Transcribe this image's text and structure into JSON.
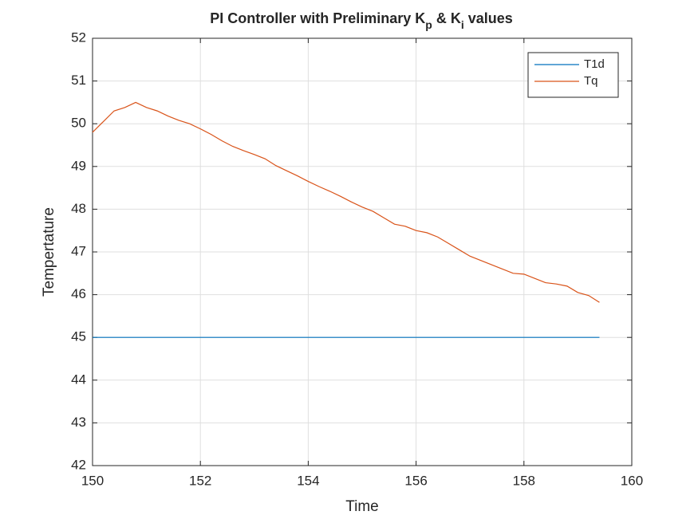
{
  "chart_data": {
    "type": "line",
    "title": [
      {
        "text": "PI Controller with Preliminary K"
      },
      {
        "text": "p",
        "subscript": true
      },
      {
        "text": " & K"
      },
      {
        "text": "i",
        "subscript": true
      },
      {
        "text": " values"
      }
    ],
    "xlabel": "Time",
    "ylabel": "Tempertature",
    "xlim": [
      150,
      160
    ],
    "xticks": [
      150,
      152,
      154,
      156,
      158,
      160
    ],
    "ylim": [
      42,
      52
    ],
    "yticks": [
      42,
      43,
      44,
      45,
      46,
      47,
      48,
      49,
      50,
      51,
      52
    ],
    "grid": true,
    "legend": "northeast",
    "x": [
      150,
      150.2,
      150.4,
      150.6,
      150.8,
      151,
      151.2,
      151.4,
      151.6,
      151.8,
      152,
      152.2,
      152.4,
      152.6,
      152.8,
      153,
      153.2,
      153.4,
      153.6,
      153.8,
      154,
      154.2,
      154.4,
      154.6,
      154.8,
      155,
      155.2,
      155.4,
      155.6,
      155.8,
      156,
      156.2,
      156.4,
      156.6,
      156.8,
      157,
      157.2,
      157.4,
      157.6,
      157.8,
      158,
      158.2,
      158.4,
      158.6,
      158.8,
      159,
      159.2,
      159.4
    ],
    "series": [
      {
        "name": "T1d",
        "color": "#0072bd",
        "values": [
          45,
          45,
          45,
          45,
          45,
          45,
          45,
          45,
          45,
          45,
          45,
          45,
          45,
          45,
          45,
          45,
          45,
          45,
          45,
          45,
          45,
          45,
          45,
          45,
          45,
          45,
          45,
          45,
          45,
          45,
          45,
          45,
          45,
          45,
          45,
          45,
          45,
          45,
          45,
          45,
          45,
          45,
          45,
          45,
          45,
          45,
          45,
          45
        ]
      },
      {
        "name": "Tq",
        "color": "#d95319",
        "values": [
          49.8,
          50.05,
          50.3,
          50.38,
          50.5,
          50.38,
          50.3,
          50.18,
          50.08,
          50.0,
          49.88,
          49.75,
          49.6,
          49.47,
          49.37,
          49.28,
          49.18,
          49.02,
          48.9,
          48.78,
          48.65,
          48.53,
          48.42,
          48.3,
          48.17,
          48.05,
          47.95,
          47.8,
          47.65,
          47.6,
          47.5,
          47.45,
          47.35,
          47.2,
          47.05,
          46.9,
          46.8,
          46.7,
          46.6,
          46.5,
          46.48,
          46.38,
          46.28,
          46.25,
          46.2,
          46.05,
          45.98,
          45.82
        ]
      }
    ]
  }
}
